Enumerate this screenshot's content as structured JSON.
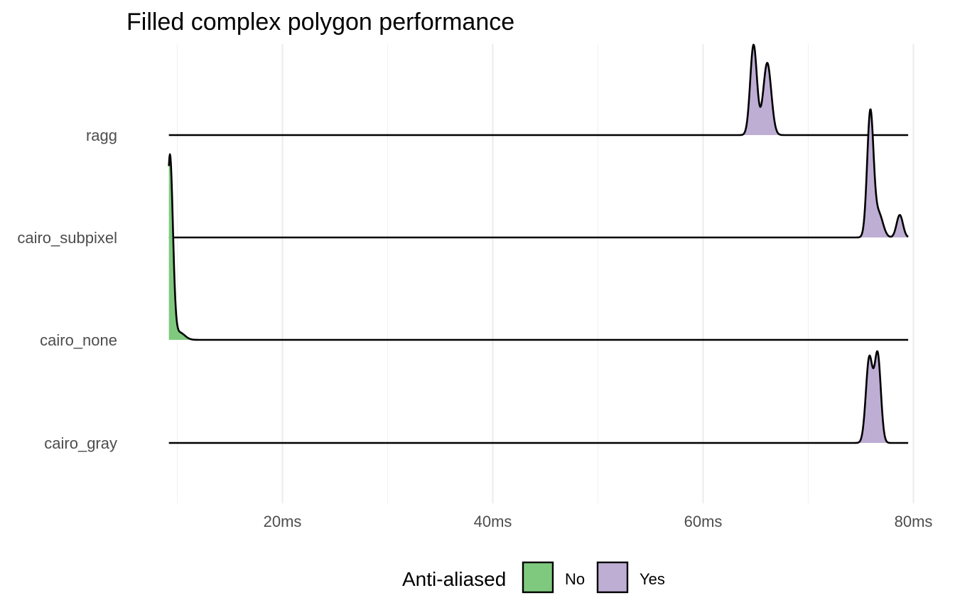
{
  "chart_data": {
    "type": "area",
    "subtype": "ridgeline-density",
    "title": "Filled complex polygon performance",
    "xlabel": "",
    "ylabel": "",
    "x_unit": "ms",
    "xlim": [
      8.5,
      80.5
    ],
    "x_ticks": [
      20,
      40,
      60,
      80
    ],
    "x_tick_labels": [
      "20ms",
      "40ms",
      "60ms",
      "80ms"
    ],
    "x_minor_ticks": [
      10,
      30,
      50,
      70
    ],
    "grid": true,
    "categories": [
      "ragg",
      "cairo_subpixel",
      "cairo_none",
      "cairo_gray"
    ],
    "legend": {
      "title": "Anti-aliased",
      "position": "bottom",
      "entries": [
        {
          "label": "No",
          "color": "#7fc97f"
        },
        {
          "label": "Yes",
          "color": "#beaed4"
        }
      ]
    },
    "series": [
      {
        "category": "ragg",
        "anti_aliased": "Yes",
        "color": "#beaed4",
        "peaks": [
          {
            "mu": 64.8,
            "sigma": 0.32,
            "h": 1.0
          },
          {
            "mu": 66.1,
            "sigma": 0.38,
            "h": 0.8
          }
        ]
      },
      {
        "category": "cairo_subpixel",
        "anti_aliased": "Yes",
        "color": "#beaed4",
        "peaks": [
          {
            "mu": 75.9,
            "sigma": 0.3,
            "h": 1.0
          },
          {
            "mu": 76.7,
            "sigma": 0.4,
            "h": 0.19
          },
          {
            "mu": 78.7,
            "sigma": 0.3,
            "h": 0.18
          }
        ]
      },
      {
        "category": "cairo_none",
        "anti_aliased": "No",
        "color": "#7fc97f",
        "peaks": [
          {
            "mu": 9.3,
            "sigma": 0.28,
            "h": 1.0
          },
          {
            "mu": 10.2,
            "sigma": 0.5,
            "h": 0.04
          }
        ]
      },
      {
        "category": "cairo_gray",
        "anti_aliased": "Yes",
        "color": "#beaed4",
        "peaks": [
          {
            "mu": 75.8,
            "sigma": 0.32,
            "h": 0.85
          },
          {
            "mu": 76.6,
            "sigma": 0.3,
            "h": 0.88
          }
        ]
      }
    ]
  }
}
